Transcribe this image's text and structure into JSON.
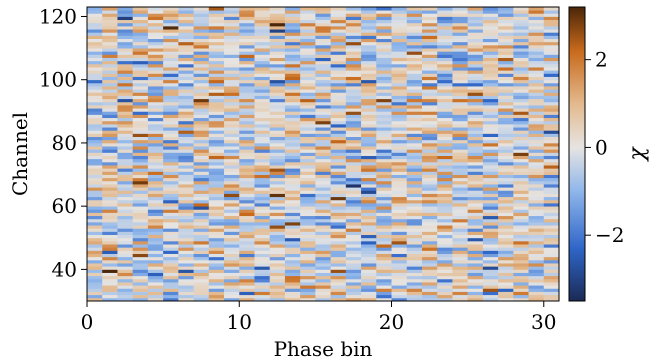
{
  "chart_data": {
    "type": "heatmap",
    "title": "",
    "xlabel": "Phase bin",
    "ylabel": "Channel",
    "colorbar_label": "χ",
    "xlim": [
      0,
      31
    ],
    "ylim": [
      30,
      123
    ],
    "x_ticks": [
      0,
      10,
      20,
      30
    ],
    "x_tick_labels": [
      "0",
      "10",
      "20",
      "30"
    ],
    "y_ticks": [
      40,
      60,
      80,
      100,
      120
    ],
    "y_tick_labels": [
      "40",
      "60",
      "80",
      "100",
      "120"
    ],
    "colorbar_range": [
      -3.5,
      3.2
    ],
    "colorbar_ticks": [
      -2,
      0,
      2
    ],
    "colorbar_tick_labels": [
      "−2",
      "0",
      "2"
    ],
    "n_phase_bins": 31,
    "n_channels": 93,
    "channel_start": 30,
    "colormap": {
      "name": "diverging blue-orange",
      "stops": [
        {
          "value": -3.5,
          "color": "#1b2a55"
        },
        {
          "value": -2.3,
          "color": "#2f66c8"
        },
        {
          "value": -1.0,
          "color": "#8fb6ea"
        },
        {
          "value": 0.0,
          "color": "#e6e4e2"
        },
        {
          "value": 1.0,
          "color": "#e3b98d"
        },
        {
          "value": 2.2,
          "color": "#c86a1c"
        },
        {
          "value": 3.2,
          "color": "#4b2608"
        }
      ]
    },
    "values_note": "Residuals appear as random noise with standard deviation ~1; exact per-cell values are not legible."
  }
}
